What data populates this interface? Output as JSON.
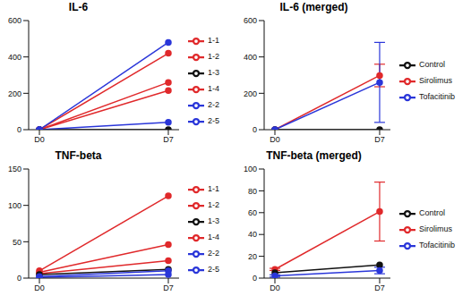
{
  "chart_data": [
    {
      "type": "line",
      "title": "IL-6",
      "categories": [
        "D0",
        "D7"
      ],
      "ylim": [
        0,
        600
      ],
      "yticks": [
        0,
        200,
        400,
        600
      ],
      "grid": false,
      "legend": "right",
      "series": [
        {
          "name": "1-1",
          "color": "#e0292b",
          "values": [
            0,
            420
          ]
        },
        {
          "name": "1-2",
          "color": "#e0292b",
          "values": [
            0,
            260
          ]
        },
        {
          "name": "1-4",
          "color": "#e0292b",
          "values": [
            0,
            215
          ]
        },
        {
          "name": "1-3",
          "color": "#111111",
          "values": [
            0,
            0
          ]
        },
        {
          "name": "2-2",
          "color": "#2a36d9",
          "values": [
            0,
            480
          ]
        },
        {
          "name": "2-5",
          "color": "#2a36d9",
          "values": [
            0,
            40
          ]
        }
      ]
    },
    {
      "type": "line",
      "title": "IL-6 (merged)",
      "categories": [
        "D0",
        "D7"
      ],
      "ylim": [
        0,
        600
      ],
      "yticks": [
        0,
        200,
        400,
        600
      ],
      "grid": false,
      "legend": "right",
      "series": [
        {
          "name": "Sirolimus",
          "color": "#e0292b",
          "values": [
            0,
            298
          ],
          "errors": [
            0,
            62
          ]
        },
        {
          "name": "Control",
          "color": "#111111",
          "values": [
            0,
            0
          ]
        },
        {
          "name": "Tofacitinib",
          "color": "#2a36d9",
          "values": [
            0,
            260
          ],
          "errors": [
            0,
            220
          ]
        }
      ]
    },
    {
      "type": "line",
      "title": "TNF-beta",
      "categories": [
        "D0",
        "D7"
      ],
      "ylim": [
        0,
        150
      ],
      "yticks": [
        0,
        50,
        100,
        150
      ],
      "grid": false,
      "legend": "right",
      "series": [
        {
          "name": "1-1",
          "color": "#e0292b",
          "values": [
            10,
            113
          ]
        },
        {
          "name": "1-2",
          "color": "#e0292b",
          "values": [
            8,
            46
          ]
        },
        {
          "name": "1-4",
          "color": "#e0292b",
          "values": [
            6,
            24
          ]
        },
        {
          "name": "1-3",
          "color": "#111111",
          "values": [
            5,
            12
          ]
        },
        {
          "name": "2-2",
          "color": "#2a36d9",
          "values": [
            2,
            10
          ]
        },
        {
          "name": "2-5",
          "color": "#2a36d9",
          "values": [
            1,
            5
          ]
        }
      ]
    },
    {
      "type": "line",
      "title": "TNF-beta (merged)",
      "categories": [
        "D0",
        "D7"
      ],
      "ylim": [
        0,
        100
      ],
      "yticks": [
        0,
        20,
        40,
        60,
        80,
        100
      ],
      "grid": false,
      "legend": "right",
      "series": [
        {
          "name": "Sirolimus",
          "color": "#e0292b",
          "values": [
            8,
            61
          ],
          "errors": [
            1,
            27
          ]
        },
        {
          "name": "Control",
          "color": "#111111",
          "values": [
            5,
            12
          ]
        },
        {
          "name": "Tofacitinib",
          "color": "#2a36d9",
          "values": [
            2,
            7
          ],
          "errors": [
            1,
            3
          ]
        }
      ]
    }
  ]
}
